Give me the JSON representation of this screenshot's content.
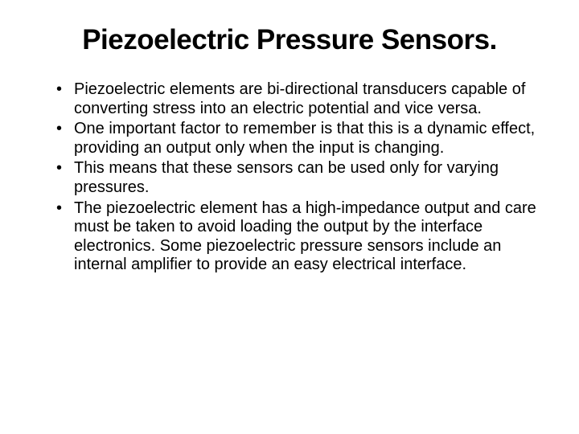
{
  "slide": {
    "title": "Piezoelectric Pressure Sensors.",
    "bullets": [
      "Piezoelectric elements are bi-directional transducers capable of converting stress into an electric potential and vice versa.",
      "One important factor to remember is that this is a dynamic effect, providing an output only when the input is changing.",
      "This means that these sensors can be used only for varying pressures.",
      "The piezoelectric element has a high-impedance output and care must be taken to avoid loading the output by the interface electronics. Some piezoelectric pressure sensors include an internal amplifier to provide an easy electrical interface."
    ]
  },
  "colors": {
    "background": "#ffffff",
    "text": "#000000"
  },
  "typography": {
    "title_fontsize": 35,
    "title_weight": "bold",
    "body_fontsize": 20,
    "font_family": "Arial"
  }
}
